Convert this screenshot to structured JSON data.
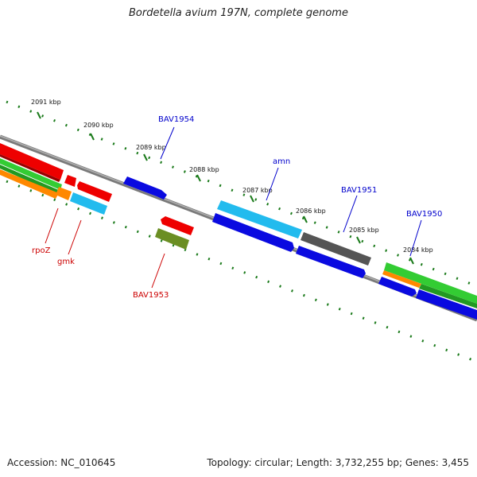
{
  "title": "Bordetella avium 197N, complete genome",
  "footer": {
    "accession": "Accession: NC_010645",
    "summary": "Topology: circular; Length: 3,732,255 bp; Genes: 3,455"
  },
  "ticks": [
    "2091 kbp",
    "2090 kbp",
    "2089 kbp",
    "2088 kbp",
    "2087 kbp",
    "2086 kbp",
    "2085 kbp",
    "2084 kbp"
  ],
  "gene_labels": [
    {
      "text": "BAV1954",
      "color": "#0000cc"
    },
    {
      "text": "amn",
      "color": "#0000cc"
    },
    {
      "text": "BAV1951",
      "color": "#0000cc"
    },
    {
      "text": "BAV1950",
      "color": "#0000cc"
    },
    {
      "text": "rpoZ",
      "color": "#cc0000"
    },
    {
      "text": "gmk",
      "color": "#cc0000"
    },
    {
      "text": "BAV1953",
      "color": "#cc0000"
    }
  ],
  "colors": {
    "backbone": "#808080",
    "tick_dots": "#1a7a1a",
    "red": "#ee0000",
    "blue": "#0a0ae0",
    "cyan": "#22bbee",
    "green": "#33cc33",
    "orange": "#ff8800",
    "gray": "#666666",
    "olive": "#6b8e23"
  }
}
